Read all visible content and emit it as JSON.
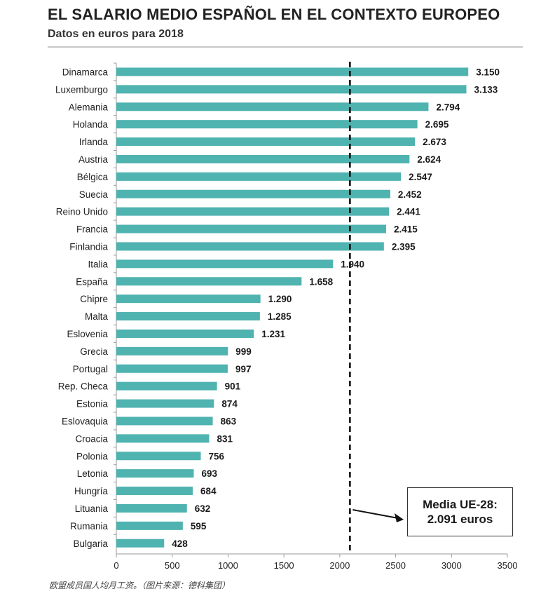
{
  "header": {
    "title": "EL SALARIO MEDIO ESPAÑOL EN EL CONTEXTO EUROPEO",
    "subtitle": "Datos en euros para 2018"
  },
  "caption": "欧盟成员国人均月工资。（图片来源：德科集团）",
  "average_box": {
    "line1": "Media UE-28:",
    "line2": "2.091 euros"
  },
  "chart_data": {
    "type": "bar",
    "orientation": "horizontal",
    "title": "EL SALARIO MEDIO ESPAÑOL EN EL CONTEXTO EUROPEO",
    "subtitle": "Datos en euros para 2018",
    "categories": [
      "Dinamarca",
      "Luxemburgo",
      "Alemania",
      "Holanda",
      "Irlanda",
      "Austria",
      "Bélgica",
      "Suecia",
      "Reino Unido",
      "Francia",
      "Finlandia",
      "Italia",
      "España",
      "Chipre",
      "Malta",
      "Eslovenia",
      "Grecia",
      "Portugal",
      "Rep. Checa",
      "Estonia",
      "Eslovaquia",
      "Croacia",
      "Polonia",
      "Letonia",
      "Hungría",
      "Lituania",
      "Rumania",
      "Bulgaria"
    ],
    "values": [
      3150,
      3133,
      2794,
      2695,
      2673,
      2624,
      2547,
      2452,
      2441,
      2415,
      2395,
      1940,
      1658,
      1290,
      1285,
      1231,
      999,
      997,
      901,
      874,
      863,
      831,
      756,
      693,
      684,
      632,
      595,
      428
    ],
    "value_labels": [
      "3.150",
      "3.133",
      "2.794",
      "2.695",
      "2.673",
      "2.624",
      "2.547",
      "2.452",
      "2.441",
      "2.415",
      "2.395",
      "1.940",
      "1.658",
      "1.290",
      "1.285",
      "1.231",
      "999",
      "997",
      "901",
      "874",
      "863",
      "831",
      "756",
      "693",
      "684",
      "632",
      "595",
      "428"
    ],
    "xlim": [
      0,
      3500
    ],
    "xticks": [
      0,
      500,
      1000,
      1500,
      2000,
      2500,
      3000,
      3500
    ],
    "reference_line": {
      "value": 2091,
      "style": "dashed"
    },
    "bar_color": "#4fb3b0",
    "grid": false,
    "legend": "none"
  }
}
